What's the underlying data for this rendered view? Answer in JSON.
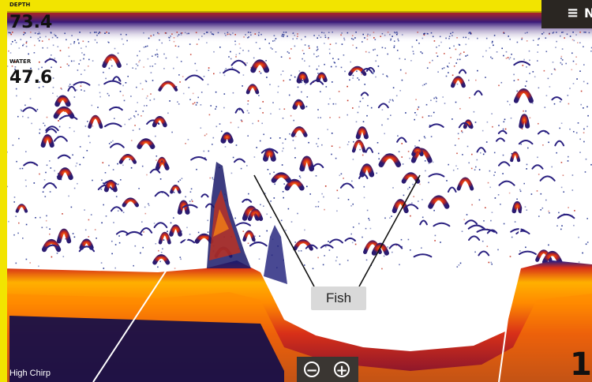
{
  "readouts": {
    "depth": {
      "label": "DEPTH",
      "value": "73.4"
    },
    "water_temp": {
      "label": "WATER",
      "value": "47.6"
    }
  },
  "callout": {
    "label": "Fish"
  },
  "zoom": {
    "out_symbol": "−",
    "in_symbol": "+"
  },
  "menu": {
    "icon": "menu-icon"
  },
  "footer": {
    "left_text": "High Chirp",
    "right_text": "1"
  },
  "colors": {
    "topbar": "#f2e400",
    "bottom_orange": "#ff8a00",
    "echo_red": "#d83a18",
    "noise_blue": "#1a2a8c",
    "callout_bg": "#d9d9d9"
  }
}
